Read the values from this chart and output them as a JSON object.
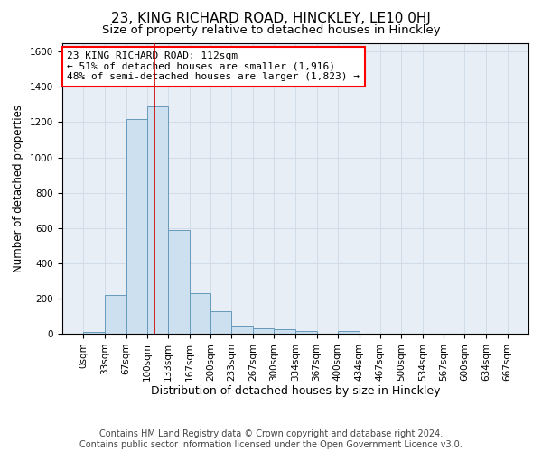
{
  "title": "23, KING RICHARD ROAD, HINCKLEY, LE10 0HJ",
  "subtitle": "Size of property relative to detached houses in Hinckley",
  "xlabel": "Distribution of detached houses by size in Hinckley",
  "ylabel": "Number of detached properties",
  "footer_line1": "Contains HM Land Registry data © Crown copyright and database right 2024.",
  "footer_line2": "Contains public sector information licensed under the Open Government Licence v3.0.",
  "bin_edges": [
    0,
    33,
    67,
    100,
    133,
    167,
    200,
    233,
    267,
    300,
    334,
    367,
    400,
    434,
    467,
    500,
    534,
    567,
    600,
    634,
    667
  ],
  "bar_heights": [
    10,
    220,
    1220,
    1290,
    590,
    230,
    130,
    45,
    30,
    25,
    15,
    0,
    15,
    0,
    0,
    0,
    0,
    0,
    0,
    0
  ],
  "bar_color": "#cce0f0",
  "bar_edge_color": "#6699bb",
  "grid_color": "#d0dce8",
  "background_color": "#e8eef5",
  "annotation_text": "23 KING RICHARD ROAD: 112sqm\n← 51% of detached houses are smaller (1,916)\n48% of semi-detached houses are larger (1,823) →",
  "vline_x": 112,
  "vline_color": "#cc0000",
  "ylim": [
    0,
    1650
  ],
  "yticks": [
    0,
    200,
    400,
    600,
    800,
    1000,
    1200,
    1400,
    1600
  ],
  "title_fontsize": 11,
  "subtitle_fontsize": 9.5,
  "annotation_fontsize": 8,
  "ylabel_fontsize": 8.5,
  "xlabel_fontsize": 9,
  "tick_fontsize": 7.5,
  "footer_fontsize": 7
}
